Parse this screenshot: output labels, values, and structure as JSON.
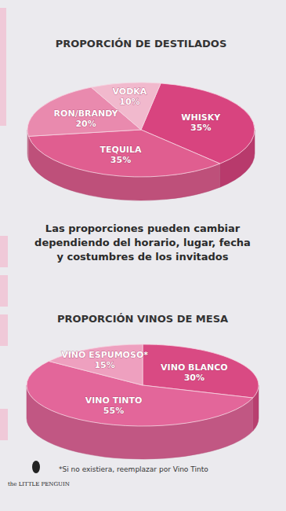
{
  "chart_data": [
    {
      "type": "pie",
      "title": "PROPORCIÓN DE DESTILADOS",
      "categories": [
        "WHISKY",
        "TEQUILA",
        "RON/BRANDY",
        "VODKA"
      ],
      "values": [
        35,
        35,
        20,
        10
      ],
      "value_labels": [
        "35%",
        "35%",
        "20%",
        "10%"
      ],
      "colors": [
        "#d8447f",
        "#e05e90",
        "#e98aae",
        "#f1b9cd"
      ],
      "data_labels": true
    },
    {
      "type": "pie",
      "title": "PROPORCIÓN VINOS DE MESA",
      "categories": [
        "VINO BLANCO",
        "VINO TINTO",
        "VINO ESPUMOSO*"
      ],
      "values": [
        30,
        55,
        15
      ],
      "value_labels": [
        "30%",
        "55%",
        "15%"
      ],
      "colors": [
        "#d94a83",
        "#e3669a",
        "#eea0bf"
      ],
      "data_labels": true
    }
  ],
  "note": [
    "Las proporciones pueden cambiar",
    "dependiendo del horario, lugar, fecha",
    "y costumbres de los invitados"
  ],
  "footnote": "*Si no existiera, reemplazar por Vino Tinto",
  "brand": "the LITTLE PENGUIN"
}
